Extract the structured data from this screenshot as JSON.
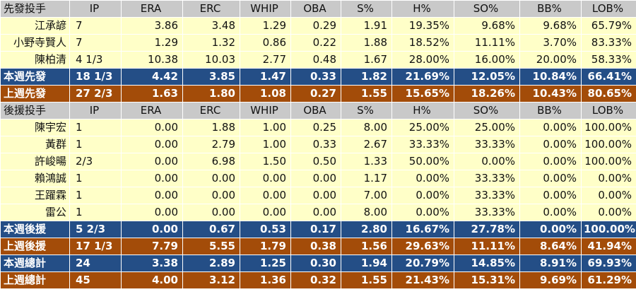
{
  "columns": [
    "IP",
    "ERA",
    "ERC",
    "WHIP",
    "OBA",
    "S%",
    "H%",
    "SO%",
    "BB%",
    "LOB%"
  ],
  "starters": {
    "header_label": "先發投手",
    "players": [
      {
        "name": "江承諺",
        "values": [
          "7",
          "3.86",
          "3.48",
          "1.29",
          "0.29",
          "1.91",
          "19.35%",
          "9.68%",
          "9.68%",
          "65.79%"
        ]
      },
      {
        "name": "小野寺賢人",
        "values": [
          "7",
          "1.29",
          "1.32",
          "0.86",
          "0.22",
          "1.88",
          "18.52%",
          "11.11%",
          "3.70%",
          "83.33%"
        ]
      },
      {
        "name": "陳柏清",
        "values": [
          "4 1/3",
          "10.38",
          "10.03",
          "2.77",
          "0.48",
          "1.67",
          "28.00%",
          "16.00%",
          "20.00%",
          "58.33%"
        ]
      }
    ],
    "this_week": {
      "label": "本週先發",
      "values": [
        "18 1/3",
        "4.42",
        "3.85",
        "1.47",
        "0.33",
        "1.82",
        "21.69%",
        "12.05%",
        "10.84%",
        "66.41%"
      ]
    },
    "last_week": {
      "label": "上週先發",
      "values": [
        "27 2/3",
        "1.63",
        "1.80",
        "1.08",
        "0.27",
        "1.55",
        "15.65%",
        "18.26%",
        "10.43%",
        "80.65%"
      ]
    }
  },
  "relievers": {
    "header_label": "後援投手",
    "players": [
      {
        "name": "陳宇宏",
        "values": [
          "1",
          "0.00",
          "1.88",
          "1.00",
          "0.25",
          "8.00",
          "25.00%",
          "25.00%",
          "0.00%",
          "100.00%"
        ]
      },
      {
        "name": "黃群",
        "values": [
          "1",
          "0.00",
          "2.79",
          "1.00",
          "0.33",
          "2.67",
          "33.33%",
          "33.33%",
          "0.00%",
          "100.00%"
        ]
      },
      {
        "name": "許峻暘",
        "values": [
          "2/3",
          "0.00",
          "6.98",
          "1.50",
          "0.50",
          "1.33",
          "50.00%",
          "0.00%",
          "0.00%",
          "100.00%"
        ]
      },
      {
        "name": "賴鴻誠",
        "values": [
          "1",
          "0.00",
          "0.00",
          "0.00",
          "0.00",
          "1.17",
          "0.00%",
          "33.33%",
          "0.00%",
          "0.00%"
        ]
      },
      {
        "name": "王躍霖",
        "values": [
          "1",
          "0.00",
          "0.00",
          "0.00",
          "0.00",
          "7.00",
          "0.00%",
          "33.33%",
          "0.00%",
          "0.00%"
        ]
      },
      {
        "name": "雷公",
        "values": [
          "1",
          "0.00",
          "0.00",
          "0.00",
          "0.00",
          "8.00",
          "0.00%",
          "33.33%",
          "0.00%",
          "0.00%"
        ]
      }
    ],
    "this_week": {
      "label": "本週後援",
      "values": [
        "5 2/3",
        "0.00",
        "0.67",
        "0.53",
        "0.17",
        "2.80",
        "16.67%",
        "27.78%",
        "0.00%",
        "100.00%"
      ]
    },
    "last_week": {
      "label": "上週後援",
      "values": [
        "17 1/3",
        "7.79",
        "5.55",
        "1.79",
        "0.38",
        "1.56",
        "29.63%",
        "11.11%",
        "8.64%",
        "41.94%"
      ]
    }
  },
  "totals": {
    "this_week": {
      "label": "本週總計",
      "values": [
        "24",
        "3.38",
        "2.89",
        "1.25",
        "0.30",
        "1.94",
        "20.79%",
        "14.85%",
        "8.91%",
        "69.93%"
      ]
    },
    "last_week": {
      "label": "上週總計",
      "values": [
        "45",
        "4.00",
        "3.12",
        "1.36",
        "0.32",
        "1.55",
        "21.43%",
        "15.31%",
        "9.69%",
        "61.29%"
      ]
    }
  }
}
